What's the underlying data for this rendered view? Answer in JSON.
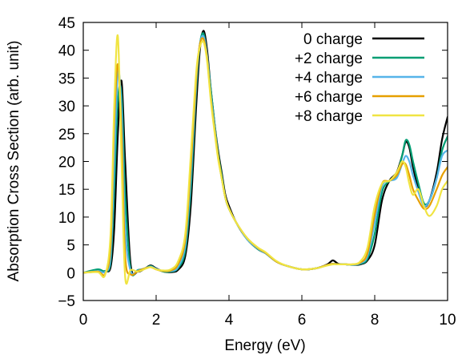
{
  "chart_data": {
    "type": "line",
    "title": "",
    "xlabel": "Energy (eV)",
    "ylabel": "Absorption Cross Section (arb. unit)",
    "xlim": [
      0,
      10
    ],
    "ylim": [
      -5,
      45
    ],
    "xticks": [
      0,
      2,
      4,
      6,
      8,
      10
    ],
    "yticks": [
      -5,
      0,
      5,
      10,
      15,
      20,
      25,
      30,
      35,
      40,
      45
    ],
    "grid": false,
    "legend_position": "top-right",
    "series": [
      {
        "name": "0 charge",
        "color": "#000000",
        "x": [
          0,
          0.4,
          0.6,
          0.75,
          0.85,
          0.95,
          1.05,
          1.15,
          1.3,
          1.5,
          1.7,
          1.85,
          2.0,
          2.2,
          2.4,
          2.6,
          2.8,
          2.95,
          3.1,
          3.2,
          3.3,
          3.4,
          3.5,
          3.6,
          3.7,
          3.8,
          3.9,
          4.0,
          4.2,
          4.5,
          4.8,
          5.0,
          5.3,
          5.6,
          6.0,
          6.4,
          6.7,
          6.85,
          7.0,
          7.2,
          7.4,
          7.6,
          7.8,
          8.0,
          8.2,
          8.4,
          8.6,
          8.75,
          8.85,
          8.95,
          9.05,
          9.2,
          9.35,
          9.5,
          9.7,
          9.85,
          10.0
        ],
        "y": [
          0,
          0.2,
          0.3,
          1,
          8,
          25,
          34.5,
          20,
          1.5,
          0.2,
          0.8,
          1.3,
          0.8,
          0.2,
          0.1,
          0.5,
          3,
          12,
          30,
          40,
          43.5,
          40,
          33,
          27,
          22,
          18,
          14,
          12,
          9,
          6,
          4.2,
          3.5,
          2,
          1.2,
          0.6,
          0.8,
          1.5,
          2.2,
          1.6,
          1.5,
          1.4,
          1.5,
          2.2,
          5,
          13,
          16.5,
          18,
          21,
          23.5,
          22.5,
          19,
          15,
          12,
          13,
          18,
          24,
          28
        ]
      },
      {
        "name": "+2 charge",
        "color": "#009e73",
        "x": [
          0,
          0.4,
          0.6,
          0.75,
          0.85,
          0.95,
          1.05,
          1.15,
          1.3,
          1.5,
          1.7,
          1.85,
          2.0,
          2.2,
          2.4,
          2.6,
          2.8,
          2.95,
          3.1,
          3.2,
          3.3,
          3.4,
          3.5,
          3.6,
          3.7,
          3.8,
          3.9,
          4.0,
          4.2,
          4.5,
          4.8,
          5.0,
          5.3,
          5.6,
          6.0,
          6.4,
          6.7,
          6.85,
          7.0,
          7.2,
          7.4,
          7.6,
          7.8,
          8.0,
          8.2,
          8.4,
          8.6,
          8.75,
          8.85,
          8.95,
          9.05,
          9.2,
          9.35,
          9.5,
          9.7,
          9.85,
          10.0
        ],
        "y": [
          0,
          0.6,
          0.3,
          2,
          15,
          31,
          32,
          14,
          0.5,
          0.5,
          0.8,
          1.2,
          0.7,
          0.2,
          0.2,
          0.8,
          4,
          15,
          33,
          41,
          43,
          39,
          33,
          27,
          21.5,
          17.5,
          13.5,
          11.5,
          9,
          6,
          4.2,
          3.5,
          2,
          1.2,
          0.6,
          0.8,
          1.4,
          1.6,
          1.5,
          1.5,
          1.4,
          1.6,
          2.5,
          7,
          14.5,
          16.5,
          17.5,
          21,
          23.8,
          23,
          20,
          16,
          12.5,
          13,
          17,
          22,
          24.5
        ]
      },
      {
        "name": "+4 charge",
        "color": "#56b4e9",
        "x": [
          0,
          0.4,
          0.6,
          0.75,
          0.85,
          0.95,
          1.05,
          1.15,
          1.3,
          1.5,
          1.7,
          1.85,
          2.0,
          2.2,
          2.4,
          2.6,
          2.8,
          2.95,
          3.1,
          3.2,
          3.3,
          3.4,
          3.5,
          3.6,
          3.7,
          3.8,
          3.9,
          4.0,
          4.2,
          4.5,
          4.8,
          5.0,
          5.3,
          5.6,
          6.0,
          6.4,
          6.7,
          6.85,
          7.0,
          7.2,
          7.4,
          7.6,
          7.8,
          8.0,
          8.2,
          8.4,
          8.6,
          8.75,
          8.85,
          8.95,
          9.05,
          9.2,
          9.35,
          9.5,
          9.7,
          9.85,
          10.0
        ],
        "y": [
          0,
          0.3,
          0.2,
          3,
          20,
          36,
          29,
          8,
          0.3,
          0.4,
          0.8,
          1.1,
          0.7,
          0.3,
          0.3,
          1,
          5,
          17,
          34,
          41,
          42.5,
          39,
          32,
          26.5,
          21,
          17,
          13.5,
          11.5,
          9,
          6,
          4.3,
          3.5,
          2,
          1.2,
          0.6,
          0.8,
          1.4,
          1.6,
          1.5,
          1.5,
          1.4,
          1.7,
          3,
          9,
          15.5,
          16.5,
          17,
          19.5,
          21,
          20,
          17.5,
          14.5,
          12,
          13,
          17,
          21,
          22
        ]
      },
      {
        "name": "+6 charge",
        "color": "#e69f00",
        "x": [
          0,
          0.4,
          0.6,
          0.75,
          0.85,
          0.95,
          1.05,
          1.15,
          1.3,
          1.5,
          1.7,
          1.85,
          2.0,
          2.2,
          2.4,
          2.6,
          2.8,
          2.95,
          3.1,
          3.2,
          3.3,
          3.4,
          3.5,
          3.6,
          3.7,
          3.8,
          3.9,
          4.0,
          4.2,
          4.5,
          4.8,
          5.0,
          5.3,
          5.6,
          6.0,
          6.4,
          6.7,
          6.85,
          7.0,
          7.2,
          7.4,
          7.6,
          7.8,
          8.0,
          8.2,
          8.4,
          8.6,
          8.75,
          8.85,
          8.95,
          9.05,
          9.2,
          9.35,
          9.5,
          9.7,
          9.85,
          10.0
        ],
        "y": [
          0,
          0.2,
          -0.2,
          5,
          27,
          37.5,
          25,
          3,
          -0.3,
          0.3,
          0.8,
          1,
          0.6,
          0.3,
          0.4,
          1.5,
          6,
          19,
          35,
          41,
          42,
          38.5,
          31.5,
          26,
          21,
          17,
          13.5,
          11.5,
          9,
          6.2,
          4.4,
          3.6,
          2,
          1.2,
          0.6,
          0.8,
          1.4,
          1.6,
          1.5,
          1.5,
          1.5,
          1.8,
          3.5,
          10.5,
          16,
          16.5,
          17.5,
          19.5,
          19.5,
          17.5,
          15,
          13,
          11.5,
          12,
          15,
          17.5,
          19
        ]
      },
      {
        "name": "+8 charge",
        "color": "#f0e442",
        "x": [
          0,
          0.4,
          0.6,
          0.75,
          0.85,
          0.95,
          1.05,
          1.15,
          1.3,
          1.5,
          1.7,
          1.85,
          2.0,
          2.2,
          2.4,
          2.6,
          2.8,
          2.95,
          3.1,
          3.2,
          3.3,
          3.4,
          3.5,
          3.6,
          3.7,
          3.8,
          3.9,
          4.0,
          4.2,
          4.5,
          4.8,
          5.0,
          5.3,
          5.6,
          6.0,
          6.4,
          6.7,
          6.85,
          7.0,
          7.2,
          7.4,
          7.6,
          7.8,
          8.0,
          8.2,
          8.4,
          8.6,
          8.75,
          8.85,
          8.95,
          9.05,
          9.2,
          9.35,
          9.5,
          9.7,
          9.85,
          10.0
        ],
        "y": [
          0,
          0.1,
          -0.4,
          7,
          30,
          42.5,
          20,
          -0.8,
          0.5,
          0.2,
          0.7,
          1,
          0.6,
          0.4,
          0.6,
          2,
          7,
          21,
          36,
          40.5,
          41.5,
          38,
          31,
          25.5,
          20.5,
          17,
          13.5,
          11.5,
          9,
          6.2,
          4.5,
          3.7,
          2.1,
          1.2,
          0.6,
          0.8,
          1.3,
          1.5,
          1.5,
          1.5,
          1.5,
          2,
          4.5,
          12,
          16,
          16.5,
          18,
          20,
          19,
          16,
          14,
          15,
          12,
          10.2,
          12,
          15,
          16.5
        ]
      }
    ]
  }
}
